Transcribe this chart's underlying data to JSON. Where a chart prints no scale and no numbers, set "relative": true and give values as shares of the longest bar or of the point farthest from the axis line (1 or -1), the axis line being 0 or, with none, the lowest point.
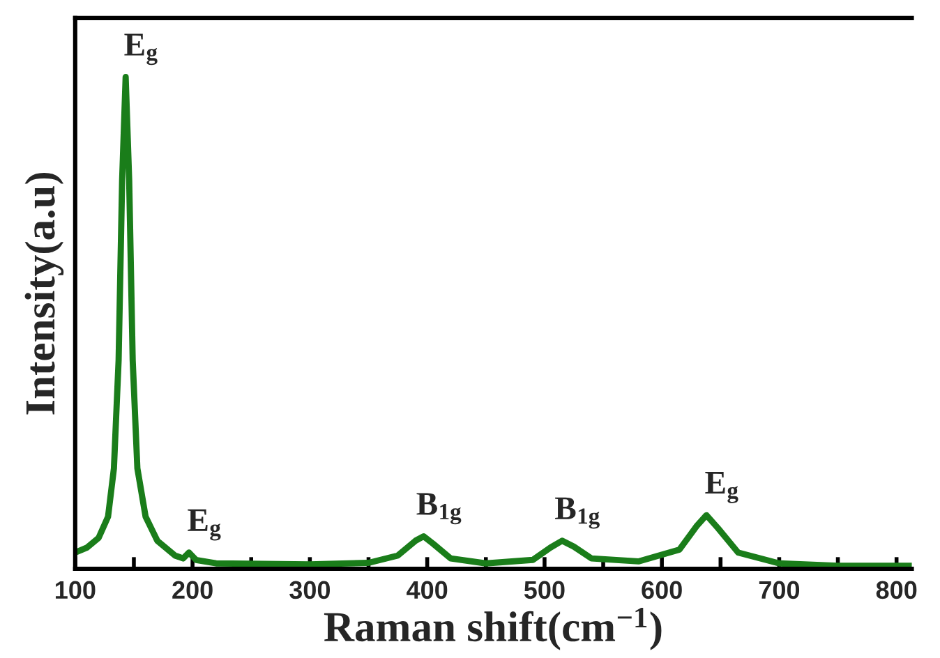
{
  "chart_data": {
    "type": "line",
    "relative": true,
    "xlabel": "Raman shift(cm$^{−1}$)",
    "ylabel": "Intensity(a.u)",
    "xlim": [
      100,
      813
    ],
    "xticks": [
      100,
      {
        "value": 150,
        "label": null
      },
      200,
      {
        "value": 250,
        "label": null
      },
      300,
      {
        "value": 350,
        "label": null
      },
      400,
      {
        "value": 450,
        "label": null
      },
      500,
      {
        "value": 550,
        "label": null
      },
      600,
      {
        "value": 650,
        "label": null
      },
      700,
      {
        "value": 750,
        "label": null
      },
      800
    ],
    "grid": false,
    "legend": false,
    "marker": "none",
    "line_style": "solid",
    "series": [
      {
        "color": "#1a7d1a",
        "x": [
          100,
          110,
          120,
          128,
          133,
          137,
          140,
          143,
          146,
          149,
          153,
          160,
          170,
          185,
          192,
          197,
          203,
          220,
          300,
          350,
          375,
          390,
          397,
          405,
          420,
          450,
          490,
          505,
          515,
          525,
          540,
          580,
          615,
          630,
          638,
          648,
          665,
          700,
          750,
          813
        ],
        "values": [
          0.033,
          0.043,
          0.063,
          0.106,
          0.204,
          0.424,
          0.79,
          1,
          0.79,
          0.424,
          0.204,
          0.106,
          0.057,
          0.027,
          0.021,
          0.033,
          0.018,
          0.011,
          0.009,
          0.012,
          0.027,
          0.057,
          0.066,
          0.051,
          0.021,
          0.011,
          0.018,
          0.043,
          0.057,
          0.045,
          0.021,
          0.015,
          0.039,
          0.088,
          0.109,
          0.082,
          0.033,
          0.011,
          0.006,
          0.006
        ]
      }
    ],
    "annotations": [
      {
        "text": "E$_{g}$",
        "x": 143,
        "y": 1
      },
      {
        "text": "E$_{g}$",
        "x": 197,
        "y": 0.033
      },
      {
        "text": "B$_{1g}$",
        "x": 397,
        "y": 0.066
      },
      {
        "text": "B$_{1g}$",
        "x": 515,
        "y": 0.057
      },
      {
        "text": "E$_{g}$",
        "x": 638,
        "y": 0.109
      }
    ]
  }
}
